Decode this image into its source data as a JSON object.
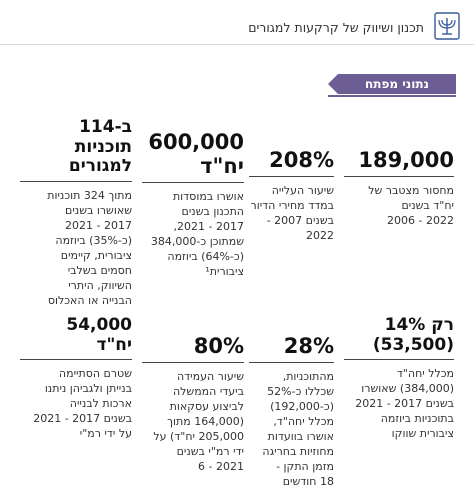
{
  "header": {
    "title": "תכנון ושיווק של קרקעות למגורים",
    "emblem_icon": "menorah-emblem-icon"
  },
  "section": {
    "label": "נתוני מפתח"
  },
  "stats_row1": [
    {
      "value": "189,000",
      "lines": [
        "מחסור מצטבר של",
        "יח\"ד בשנים",
        "2022 - 2006"
      ]
    },
    {
      "value": "208%",
      "lines": [
        "שיעור העלייה",
        "במדד מחירי הדיור",
        "בשנים 2007 -",
        "2022"
      ]
    },
    {
      "value_lines": [
        "600,000",
        "יח\"ד"
      ],
      "lines": [
        "אושרו במוסדות",
        "התכנון בשנים",
        "2017 - 2021,",
        "שמתוכן כ-384,000",
        "(כ-64%) ביוזמה",
        "ציבורית¹"
      ]
    },
    {
      "value_lines": [
        "ב-114",
        "תוכניות",
        "למגורים"
      ],
      "lines": [
        "מתוך 324 תוכניות",
        "שאושרו בשנים",
        "2017 - 2021",
        "(כ-35%) ביוזמה",
        "ציבורית, קיימים",
        "חסמים בשלבי",
        "השיווק, היתרי",
        "הבנייה או האכלוס"
      ]
    }
  ],
  "stats_row2": [
    {
      "value_lines": [
        "רק 14%",
        "(53,500)"
      ],
      "lines": [
        "מכלל יחה\"ד",
        "(384,000) שאושרו",
        "בשנים 2017 - 2021",
        "בתוכניות ביוזמה",
        "ציבורית שווקו"
      ]
    },
    {
      "value": "28%",
      "lines": [
        "מהתוכניות,",
        "שכללו כ-52%",
        "(כ-192,000)",
        "מכלל יחה\"ד,",
        "אושרו בוועדות",
        "מחוזיות בחריגה",
        "מזמן התקן -",
        "18 חודשים"
      ]
    },
    {
      "value": "80%",
      "lines": [
        "שיעור העמידה",
        "ביעדי הממשלה",
        "לביצוע עסקאות",
        "(164,000 מתוך",
        "205,000 יח\"ד) על",
        "ידי רמ\"י בשנים",
        "2021 - 6"
      ]
    },
    {
      "value_lines": [
        "54,000",
        "יח\"ד"
      ],
      "lines": [
        "שטרם הסתיימה",
        "בנייתן ולגביהן ניתנו",
        "ארכות לבנייה",
        "בשנים 2017 - 2021",
        "על ידי רמ\"י"
      ]
    }
  ]
}
